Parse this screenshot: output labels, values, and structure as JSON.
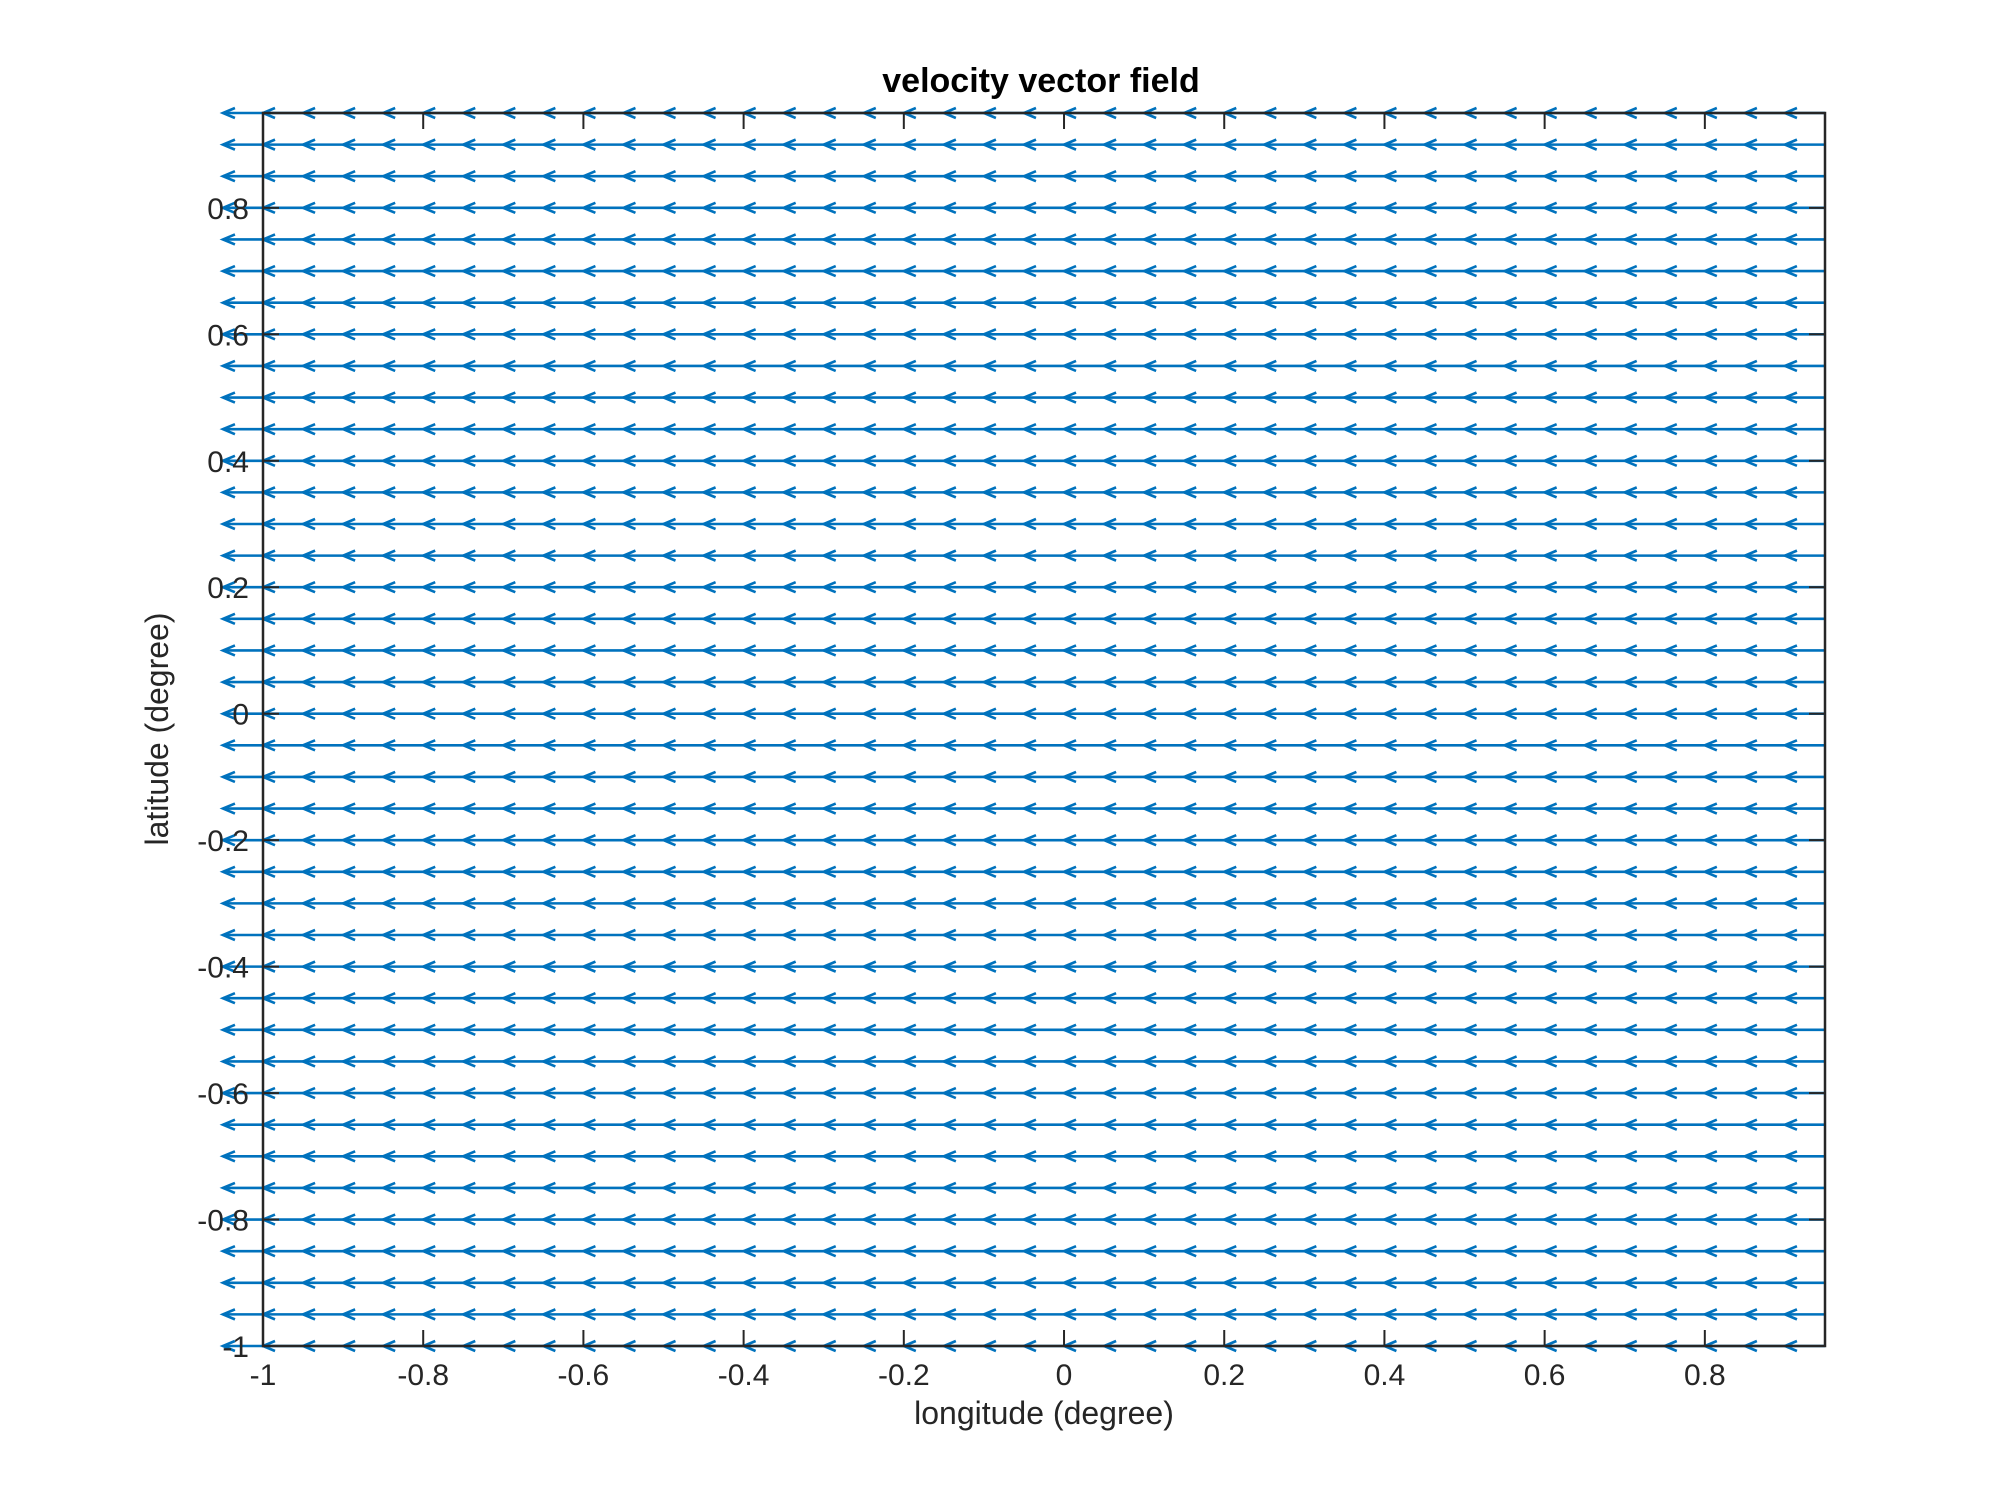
{
  "chart_data": {
    "type": "quiver",
    "title": "velocity vector field",
    "xlabel": "longitude (degree)",
    "ylabel": "latitude (degree)",
    "xlim": [
      -1,
      0.95
    ],
    "ylim": [
      -1,
      0.95
    ],
    "xticks": [
      "-1",
      "-0.8",
      "-0.6",
      "-0.4",
      "-0.2",
      "0",
      "0.2",
      "0.4",
      "0.6",
      "0.8"
    ],
    "yticks": [
      "-1",
      "-0.8",
      "-0.6",
      "-0.4",
      "-0.2",
      "0",
      "0.2",
      "0.4",
      "0.6",
      "0.8"
    ],
    "grid": false,
    "color": "#0072BD",
    "field": {
      "x_start": -1,
      "x_end": 0.95,
      "x_step": 0.05,
      "y_start": -1,
      "y_end": 0.95,
      "y_step": 0.05,
      "u": -0.05,
      "v": 0,
      "description": "uniform westward flow"
    }
  }
}
